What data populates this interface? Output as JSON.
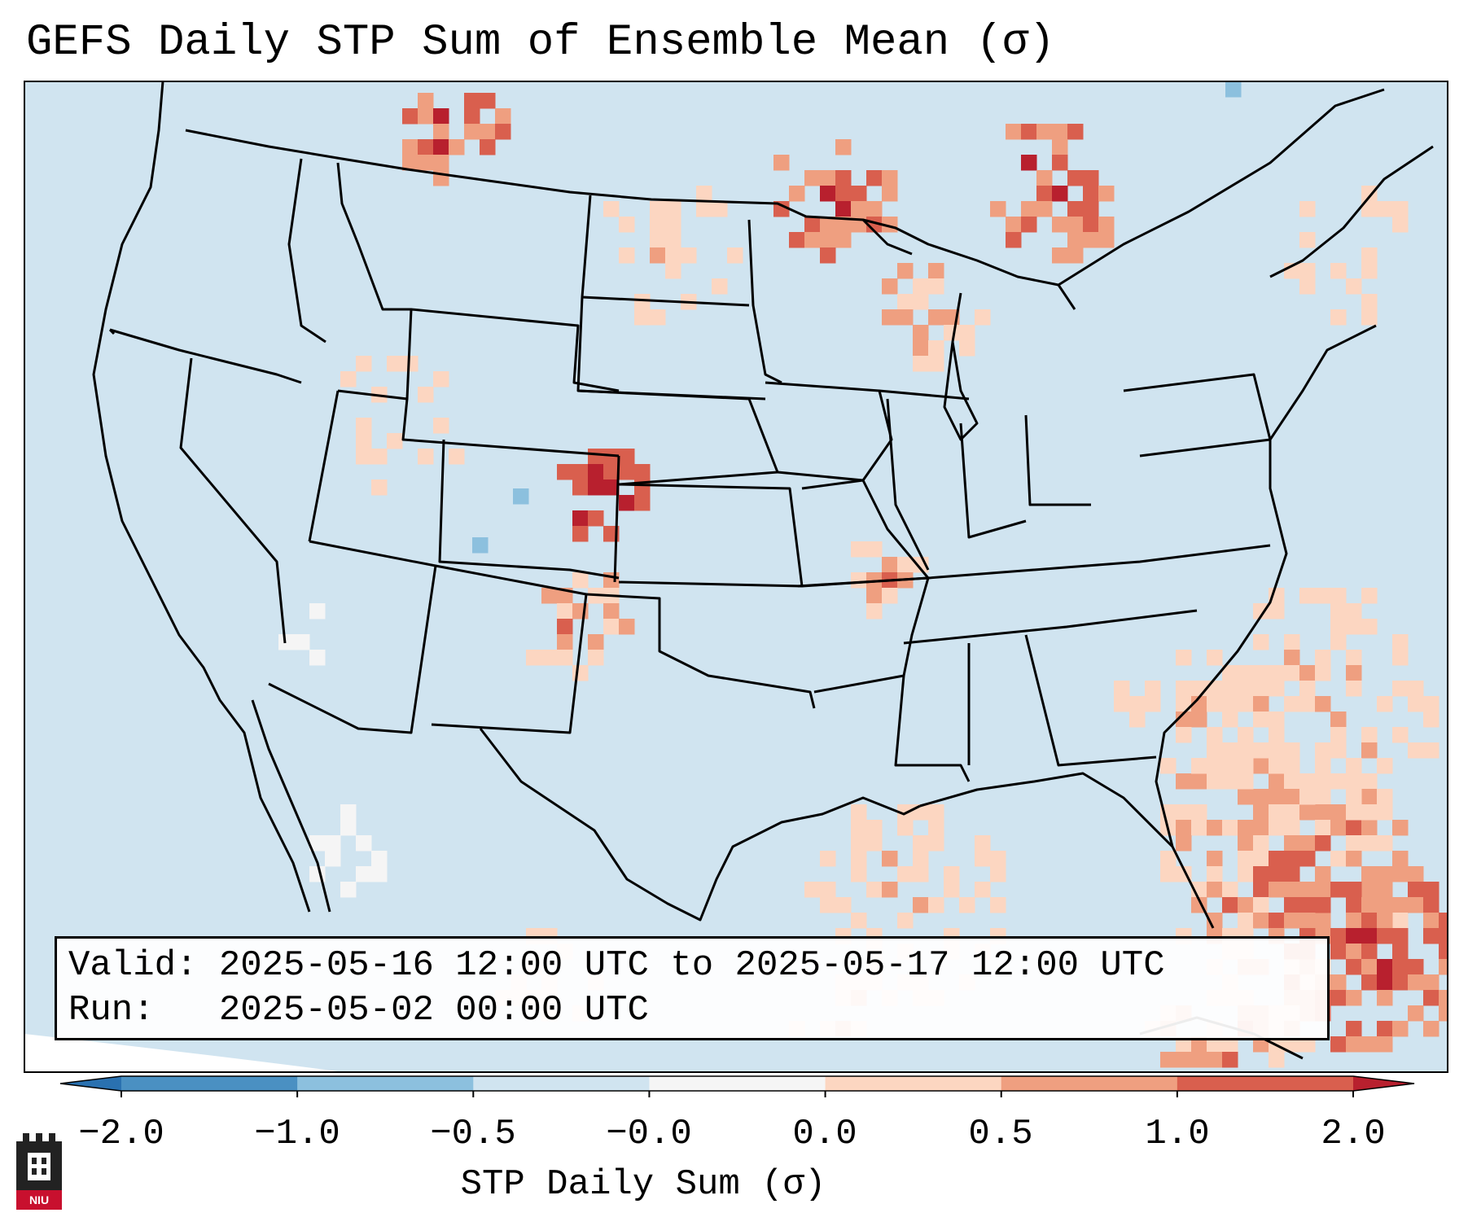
{
  "title": "GEFS Daily STP Sum of Ensemble Mean (σ)",
  "info": {
    "valid_line": "Valid: 2025-05-16 12:00 UTC to 2025-05-17 12:00 UTC",
    "run_line": "Run:   2025-05-02 00:00 UTC"
  },
  "colorbar": {
    "label": "STP Daily Sum (σ)",
    "ticks": [
      "−2.0",
      "−1.0",
      "−0.5",
      "−0.0",
      "0.0",
      "0.5",
      "1.0",
      "2.0"
    ],
    "colors": [
      "#4a90c2",
      "#8cc0de",
      "#d0e4f0",
      "#f5f5f5",
      "#fcd6c1",
      "#ef9f80",
      "#d95f4e",
      "#b8202e"
    ],
    "under_color": "#2a71b0",
    "over_color": "#b8202e"
  },
  "map": {
    "background_color": "#d0e4f0",
    "outside_color": "#ffffff",
    "line_color": "#000000"
  },
  "logo": {
    "text": "NIU",
    "color": "#c8102e"
  }
}
